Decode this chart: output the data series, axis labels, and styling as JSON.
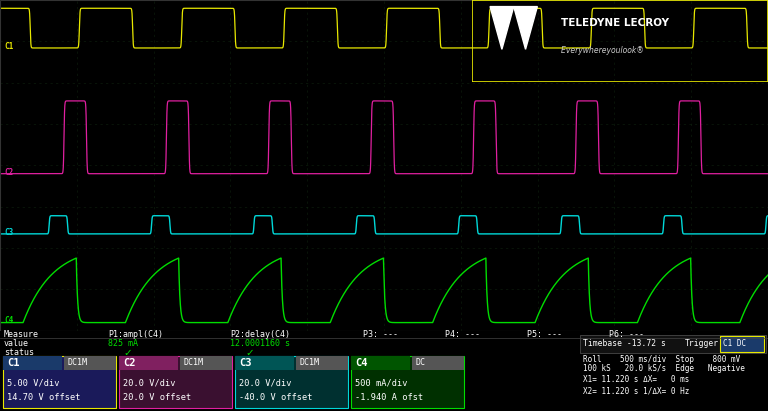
{
  "bg_color": "#000000",
  "scope_bg": "#000000",
  "grid_line_color": "#1a3a1a",
  "ch1_color": "#e8e800",
  "ch2_color": "#e020a0",
  "ch3_color": "#00d8d8",
  "ch4_color": "#00dd00",
  "ch1_label_bg": "#1a3a6a",
  "ch2_label_bg": "#802060",
  "ch3_label_bg": "#005555",
  "ch4_label_bg": "#005500",
  "ch1_info": [
    "C1",
    "DC1M",
    "5.00 V/div",
    "14.70 V offset"
  ],
  "ch2_info": [
    "C2",
    "DC1M",
    "20.0 V/div",
    "20.0 V offset"
  ],
  "ch3_info": [
    "C3",
    "DC1M",
    "20.0 V/div",
    "-40.0 V offset"
  ],
  "ch4_info": [
    "C4",
    "DC",
    "500 mA/div",
    "-1.940 A ofst"
  ]
}
